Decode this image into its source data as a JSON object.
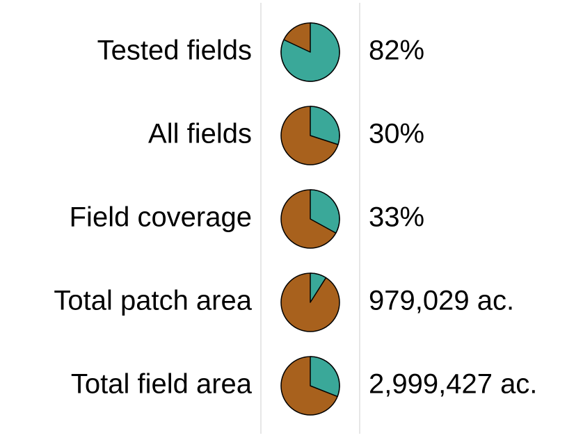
{
  "rows": [
    {
      "label": "Tested fields",
      "text": "82%",
      "share": 82
    },
    {
      "label": "All fields",
      "text": "30%",
      "share": 30
    },
    {
      "label": "Field coverage",
      "text": "33%",
      "share": 33
    },
    {
      "label": "Total patch area",
      "text": "979,029 ac.",
      "share": 9
    },
    {
      "label": "Total field area",
      "text": "2,999,427 ac.",
      "share": 31
    }
  ],
  "colors": {
    "part": "#3aa899",
    "rest": "#a8611d"
  }
}
